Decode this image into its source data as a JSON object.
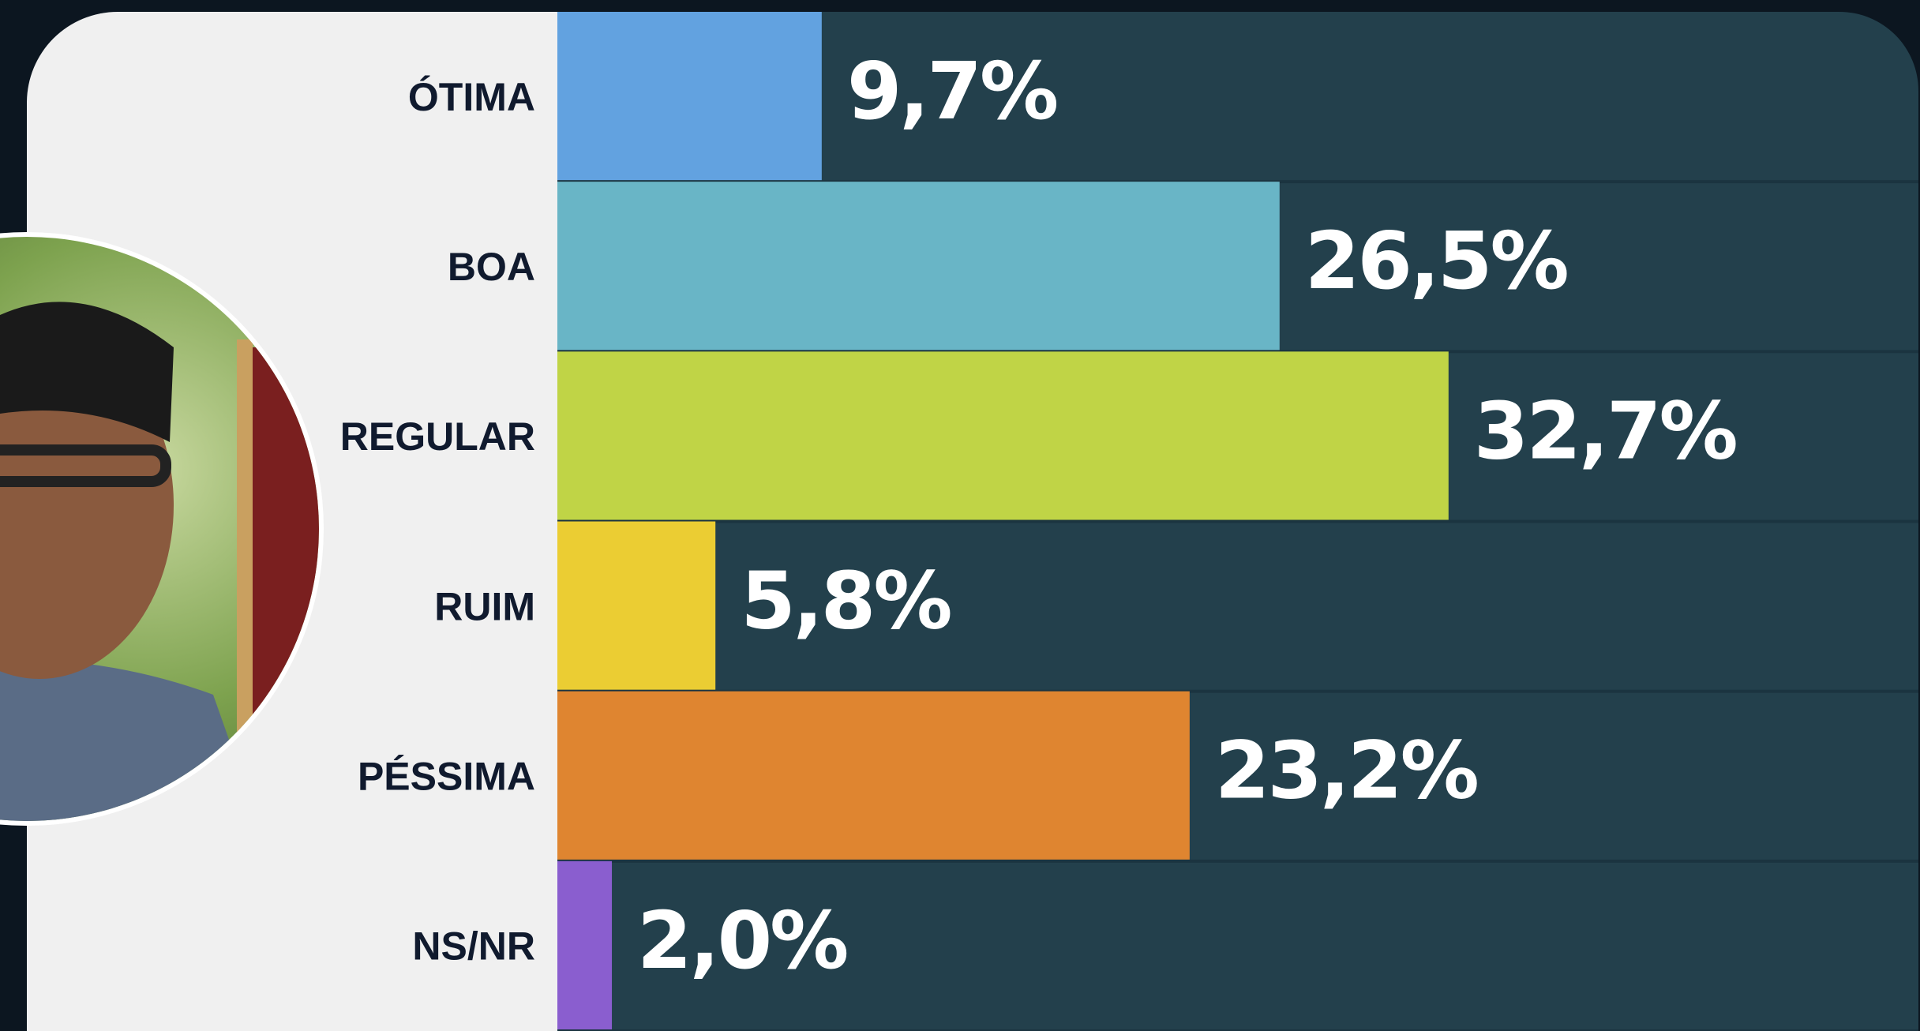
{
  "chart_data": {
    "type": "bar",
    "orientation": "horizontal",
    "categories": [
      "ÓTIMA",
      "BOA",
      "REGULAR",
      "RUIM",
      "PÉSSIMA",
      "NS/NR"
    ],
    "values": [
      9.7,
      26.5,
      32.7,
      5.8,
      23.2,
      2.0
    ],
    "value_labels": [
      "9,7%",
      "26,5%",
      "32,7%",
      "5,8%",
      "23,2%",
      "2,0%"
    ],
    "colors": [
      "#62a2e0",
      "#69b5c6",
      "#c0d446",
      "#ebcd33",
      "#df8530",
      "#8a5ecf"
    ],
    "xlim": [
      0,
      50
    ]
  }
}
